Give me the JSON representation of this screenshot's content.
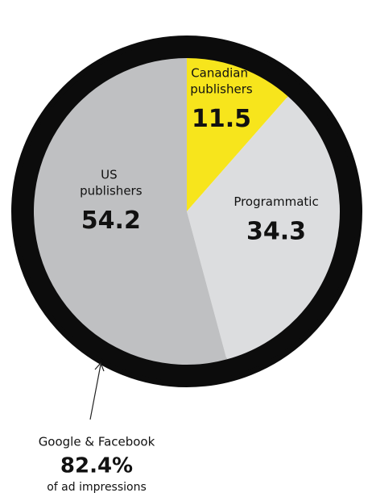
{
  "chart_data": {
    "type": "pie",
    "categories": [
      "Canadian publishers",
      "Programmatic",
      "US publishers"
    ],
    "values": [
      11.5,
      34.3,
      54.2
    ],
    "colors": [
      "#f7e51c",
      "#dcdddf",
      "#bfc0c2"
    ],
    "annotation": {
      "title": "Google & Facebook",
      "value": "82.4%",
      "note": "of ad impressions"
    }
  }
}
